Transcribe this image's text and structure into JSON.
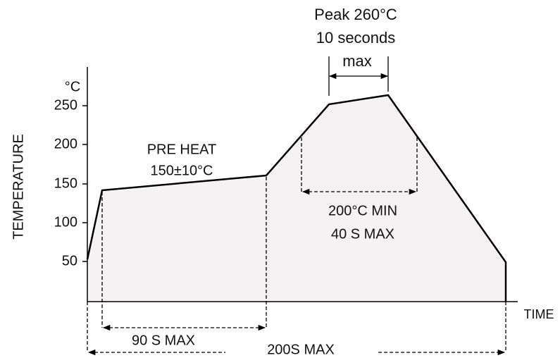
{
  "y_axis": {
    "label": "TEMPERATURE",
    "unit": "°C",
    "ticks": [
      "250",
      "200",
      "150",
      "100",
      "50"
    ]
  },
  "x_axis": {
    "label": "TIME"
  },
  "annotations": {
    "peak": [
      "Peak 260°C",
      "10 seconds",
      "max"
    ],
    "preheat": [
      "PRE HEAT",
      "150±10°C"
    ],
    "preheat_time": "90 S MAX",
    "above_200": [
      "200°C MIN",
      "40 S MAX"
    ],
    "total_time": "200S MAX"
  }
}
